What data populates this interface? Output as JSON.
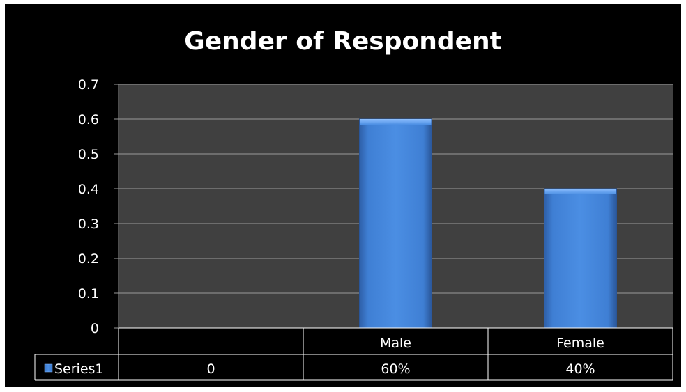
{
  "chart_data": {
    "type": "bar",
    "title": "Gender of Respondent",
    "xlabel": "",
    "ylabel": "",
    "categories": [
      "",
      "Male",
      "Female"
    ],
    "series": [
      {
        "name": "Series1",
        "values": [
          0,
          0.6,
          0.4
        ],
        "labels": [
          "0",
          "60%",
          "40%"
        ],
        "color": "#3f7fd4"
      }
    ],
    "ylim": [
      0,
      0.7
    ],
    "yticks": [
      "0",
      "0.1",
      "0.2",
      "0.3",
      "0.4",
      "0.5",
      "0.6",
      "0.7"
    ],
    "grid": true,
    "legend": "data-table-left",
    "colors": {
      "background": "#000000",
      "plot_area": "#404040",
      "gridline": "#9a9a9a",
      "text": "#ffffff",
      "bar": "#3f7fd4"
    }
  }
}
